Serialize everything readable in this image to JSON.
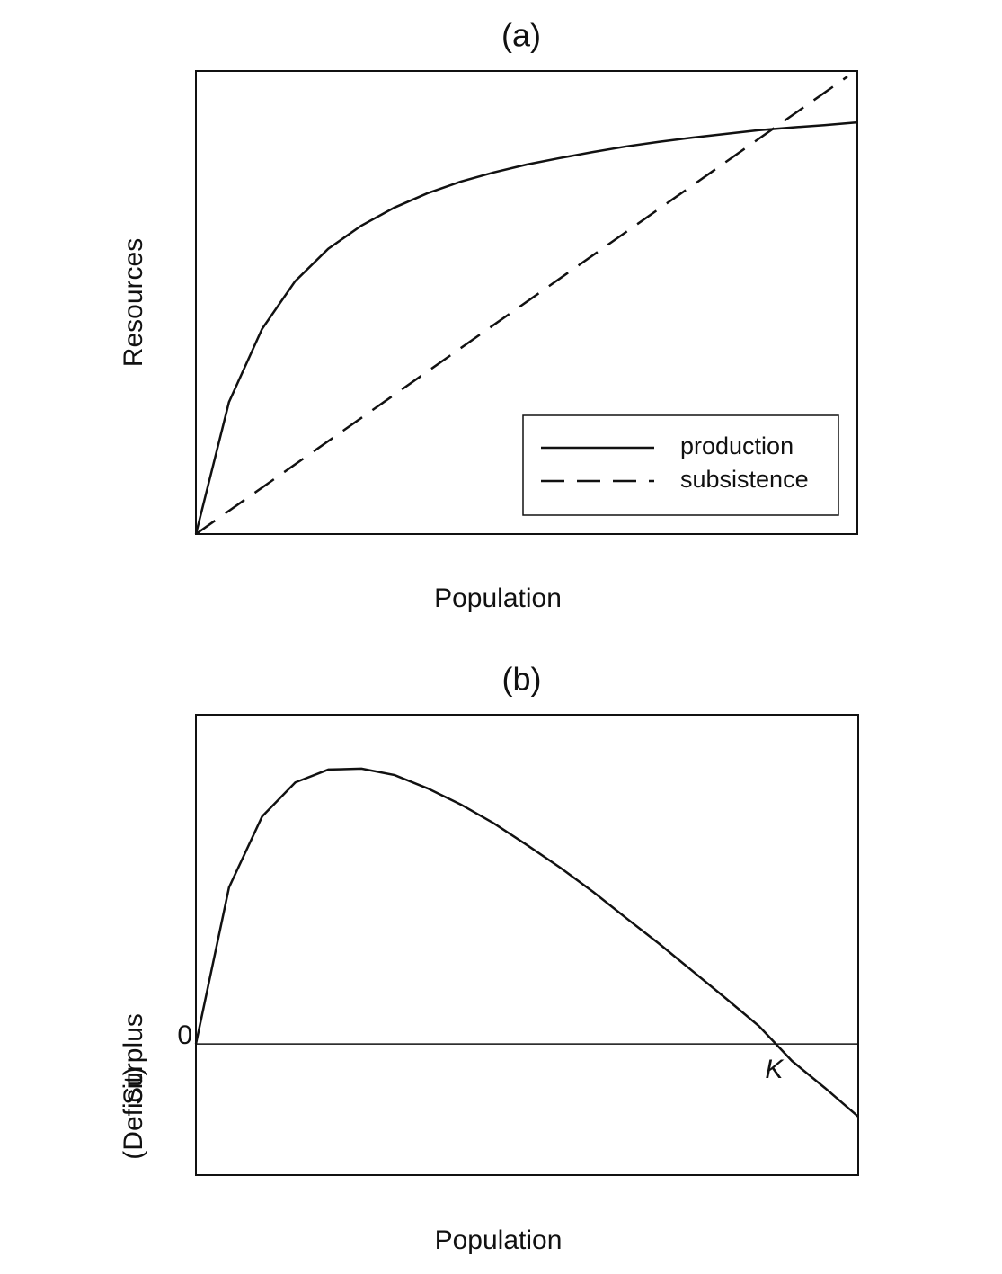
{
  "chart_data": [
    {
      "type": "line",
      "title": "(a)",
      "ylabel": "Resources",
      "xlabel": "Population",
      "xlim": [
        0,
        20
      ],
      "ylim": [
        0,
        100
      ],
      "legend": "lower right",
      "series": [
        {
          "name": "production",
          "color": "#111111",
          "linestyle": "solid",
          "x": [
            0,
            1,
            2,
            3,
            4,
            5,
            6,
            7,
            8,
            9,
            10,
            11,
            12,
            13,
            14,
            15,
            16,
            17,
            18,
            19,
            20
          ],
          "values": [
            0,
            28.5,
            44.3,
            54.6,
            61.6,
            66.6,
            70.5,
            73.6,
            76.1,
            78.1,
            79.8,
            81.2,
            82.5,
            83.7,
            84.7,
            85.6,
            86.4,
            87.2,
            87.8,
            88.3,
            88.9
          ]
        },
        {
          "name": "subsistence",
          "color": "#111111",
          "linestyle": "dashed",
          "x": [
            0,
            19.7
          ],
          "values": [
            0,
            98.8
          ]
        }
      ]
    },
    {
      "type": "line",
      "title": "(b)",
      "ylabel": "Surplus",
      "ylabel_negative": "(Deficit)",
      "xlabel": "Population",
      "xlim": [
        0,
        20
      ],
      "ylim": [
        -28.5,
        71.5
      ],
      "yticks": [
        0
      ],
      "grid": true,
      "color": "#111111",
      "annotation": "K",
      "x": [
        0,
        1,
        2,
        3,
        4,
        5,
        6,
        7,
        8,
        9,
        10,
        11,
        12,
        13,
        14,
        15,
        16,
        17,
        18,
        19,
        20
      ],
      "values": [
        0,
        34.0,
        49.4,
        56.8,
        59.6,
        59.8,
        58.4,
        55.5,
        52.0,
        47.9,
        43.2,
        38.3,
        33.0,
        27.3,
        21.7,
        15.8,
        9.9,
        3.9,
        -3.7,
        -9.6,
        -15.8
      ]
    }
  ]
}
